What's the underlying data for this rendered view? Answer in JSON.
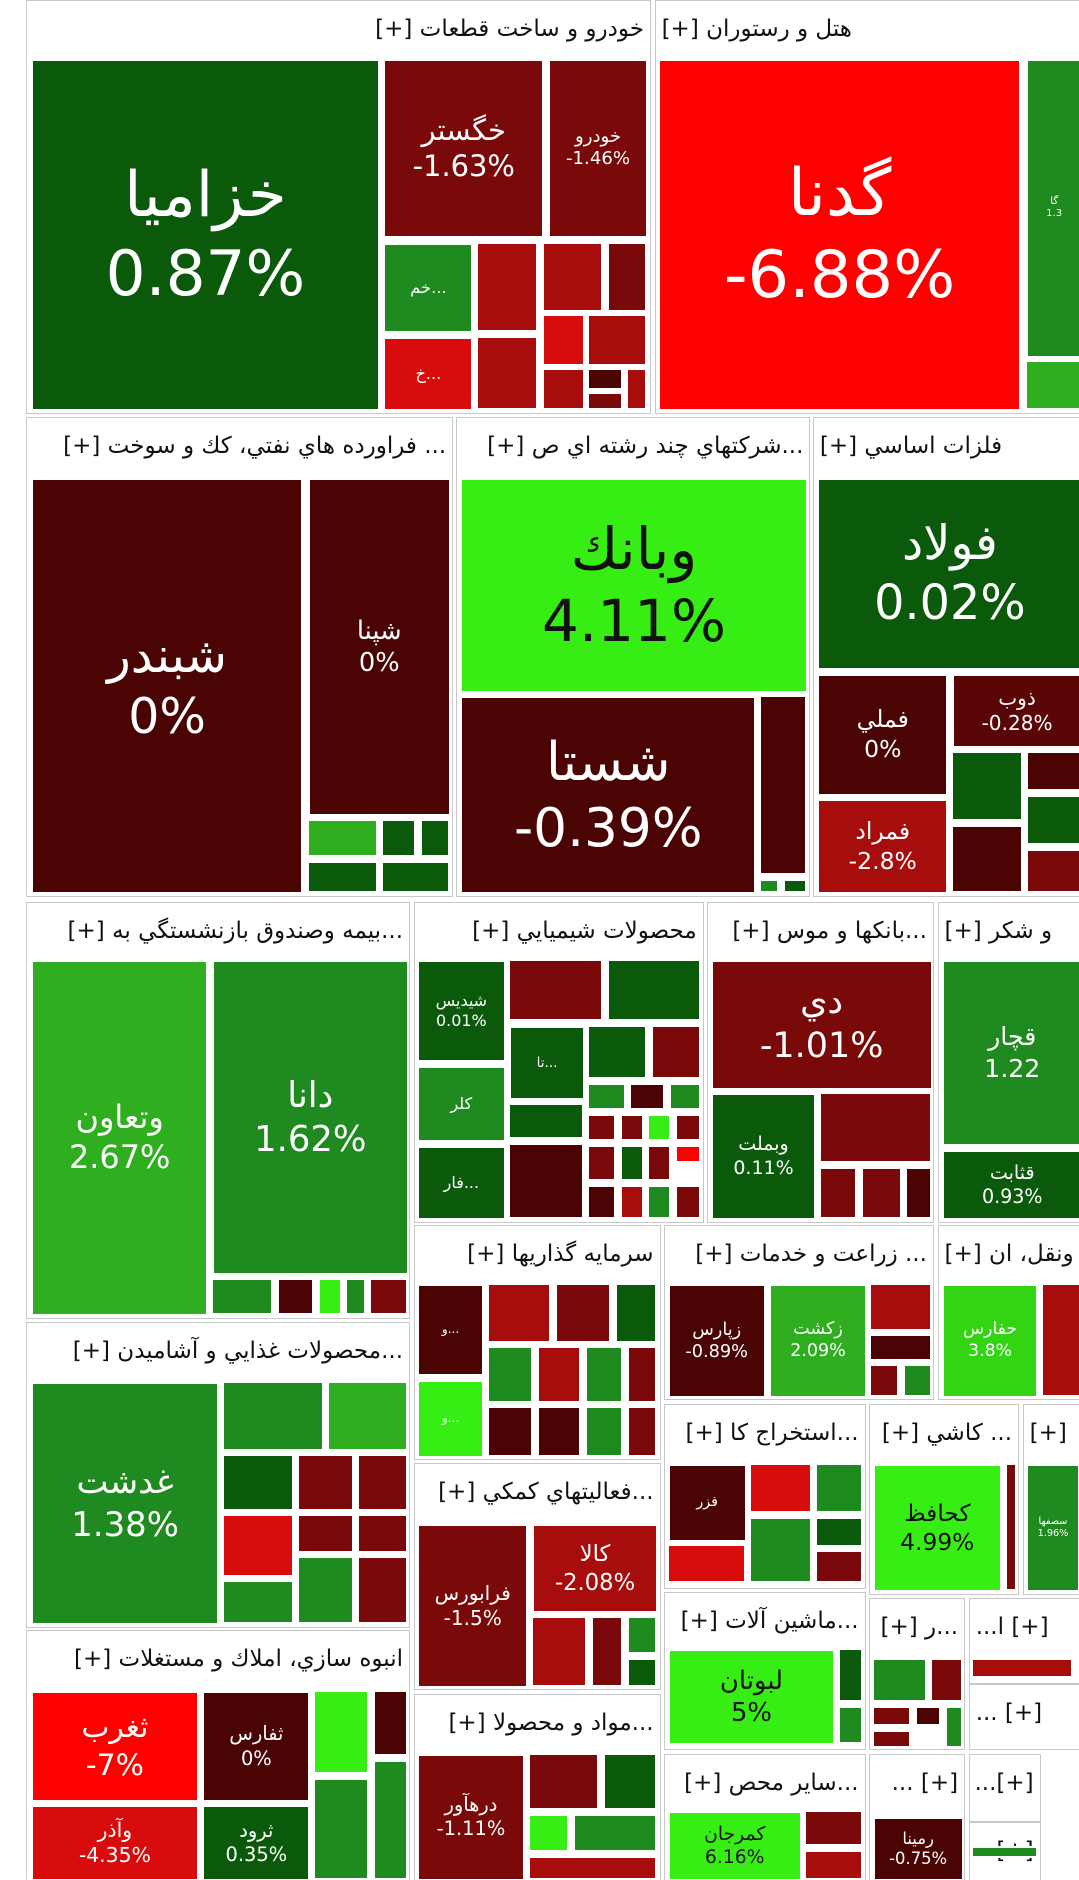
{
  "sectors": [
    {
      "title": "خودرو و ساخت قطعات [+]",
      "tiles": [
        {
          "name": "خزاميا",
          "change": "0.87%"
        },
        {
          "name": "خگستر",
          "change": "-1.63%"
        },
        {
          "name": "خودرو",
          "change": "-1.46%"
        },
        {
          "name": "خم..."
        },
        {
          "name": "خ..."
        }
      ]
    },
    {
      "title": "هتل و رستوران [+]",
      "tiles": [
        {
          "name": "گدنا",
          "change": "-6.88%"
        },
        {
          "name": "گا",
          "change": "1.3"
        }
      ]
    },
    {
      "title": "... فراورده هاي نفتي، كك و سوخت [+]",
      "tiles": [
        {
          "name": "شبندر",
          "change": "0%"
        },
        {
          "name": "شپنا",
          "change": "0%"
        }
      ]
    },
    {
      "title": "...شركتهاي چند رشته اي ص [+]",
      "tiles": [
        {
          "name": "وبانك",
          "change": "4.11%"
        },
        {
          "name": "شستا",
          "change": "-0.39%"
        }
      ]
    },
    {
      "title": "فلزات اساسي [+]",
      "tiles": [
        {
          "name": "فولاد",
          "change": "0.02%"
        },
        {
          "name": "فملي",
          "change": "0%"
        },
        {
          "name": "ذوب",
          "change": "-0.28%"
        },
        {
          "name": "فمراد",
          "change": "-2.8%"
        }
      ]
    },
    {
      "title": "...بيمه وصندوق بازنشستگي به [+]",
      "tiles": [
        {
          "name": "وتعاون",
          "change": "2.67%"
        },
        {
          "name": "دانا",
          "change": "1.62%"
        }
      ]
    },
    {
      "title": "محصولات شيميايي [+]",
      "tiles": [
        {
          "name": "شيديس",
          "change": "0.01%"
        },
        {
          "name": "كلر"
        },
        {
          "name": "فار..."
        },
        {
          "name": "تا..."
        }
      ]
    },
    {
      "title": "...بانكها و موس [+]",
      "tiles": [
        {
          "name": "دي",
          "change": "-1.01%"
        },
        {
          "name": "وبملت",
          "change": "0.11%"
        }
      ]
    },
    {
      "title": "و شكر [+]",
      "tiles": [
        {
          "name": "قچار",
          "change": "1.22"
        },
        {
          "name": "قثابت",
          "change": "0.93%"
        }
      ]
    },
    {
      "title": "سرمايه گذاريها [+]",
      "tiles": [
        {
          "name": "و..."
        },
        {
          "name": "و..."
        }
      ]
    },
    {
      "title": "... زراعت و خدمات [+]",
      "tiles": [
        {
          "name": "زپارس",
          "change": "-0.89%"
        },
        {
          "name": "زكشت",
          "change": "2.09%"
        }
      ]
    },
    {
      "title": "ونقل، ان [+]",
      "tiles": [
        {
          "name": "حفارس",
          "change": "3.8%"
        }
      ]
    },
    {
      "title": "...محصولات غذايي و آشاميدن [+]",
      "tiles": [
        {
          "name": "غدشت",
          "change": "1.38%"
        }
      ]
    },
    {
      "title": "...استخراج كا [+]",
      "tiles": [
        {
          "name": "فزر"
        }
      ]
    },
    {
      "title": "... كاشي [+]",
      "tiles": [
        {
          "name": "كحافظ",
          "change": "4.99%"
        }
      ]
    },
    {
      "title": "[+]",
      "tiles": [
        {
          "name": "سصفها",
          "change": "1.96%"
        }
      ]
    },
    {
      "title": "...فعاليتهاي كمكي [+]",
      "tiles": [
        {
          "name": "فرابورس",
          "change": "-1.5%"
        },
        {
          "name": "كالا",
          "change": "-2.08%"
        }
      ]
    },
    {
      "title": "...ماشين آلات [+]",
      "tiles": [
        {
          "name": "لبوتان",
          "change": "5%"
        }
      ]
    },
    {
      "title": "...ر [+]"
    },
    {
      "title": "[+] ا..."
    },
    {
      "title": "[+] ..."
    },
    {
      "title": "انبوه سازي، املاك و مستغلات [+]",
      "tiles": [
        {
          "name": "ثغرب",
          "change": "-7%"
        },
        {
          "name": "ثفارس",
          "change": "0%"
        },
        {
          "name": "وآذر",
          "change": "-4.35%"
        },
        {
          "name": "ثرود",
          "change": "0.35%"
        }
      ]
    },
    {
      "title": "...مواد و محصولا [+]",
      "tiles": [
        {
          "name": "درهآور",
          "change": "-1.11%"
        }
      ]
    },
    {
      "title": "...ساير محص [+]",
      "tiles": [
        {
          "name": "كمرجان",
          "change": "6.16%"
        }
      ]
    },
    {
      "title": "[+] ...",
      "tiles": [
        {
          "name": "رمينا",
          "change": "-0.75%"
        }
      ]
    },
    {
      "title": "[+]..."
    },
    {
      "title": "[+]..."
    }
  ]
}
